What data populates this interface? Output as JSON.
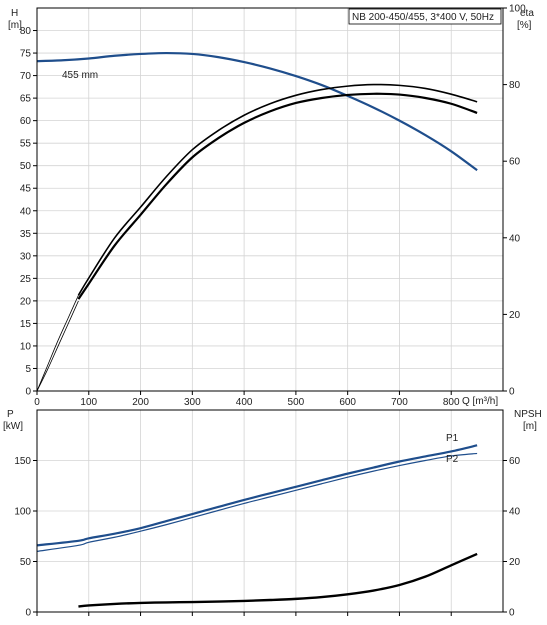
{
  "chart_data": [
    {
      "type": "line",
      "title": "NB 200-450/455, 3*400 V, 50Hz",
      "xlabel": "Q [m³/h]",
      "xlim": [
        0,
        900
      ],
      "x_ticks": [
        0,
        100,
        200,
        300,
        400,
        500,
        600,
        700,
        800
      ],
      "grid": true,
      "left_axis": {
        "label_line1": "H",
        "label_line2": "[m]",
        "ylim": [
          0,
          85
        ],
        "ticks": [
          0,
          5,
          10,
          15,
          20,
          25,
          30,
          35,
          40,
          45,
          50,
          55,
          60,
          65,
          70,
          75,
          80
        ]
      },
      "right_axis": {
        "label_line1": "eta",
        "label_line2": "[%]",
        "ylim": [
          0,
          100
        ],
        "ticks": [
          0,
          20,
          40,
          60,
          80,
          100
        ]
      },
      "series": [
        {
          "name": "455 mm",
          "axis": "left",
          "color": "#1f4e8c",
          "width": 2.2,
          "x": [
            0,
            50,
            100,
            150,
            200,
            250,
            300,
            350,
            400,
            450,
            500,
            550,
            600,
            650,
            700,
            750,
            800,
            850
          ],
          "y": [
            73.2,
            73.4,
            73.8,
            74.4,
            74.8,
            75.0,
            74.8,
            74.1,
            73.0,
            71.6,
            69.9,
            67.9,
            65.5,
            62.9,
            60.0,
            56.8,
            53.2,
            49.0
          ]
        },
        {
          "axis": "right",
          "color": "#000000",
          "width": 2.2,
          "x": [
            80,
            100,
            150,
            200,
            250,
            300,
            350,
            400,
            450,
            500,
            550,
            600,
            650,
            700,
            750,
            800,
            850
          ],
          "y": [
            24,
            28,
            38,
            46,
            54,
            61,
            66,
            70,
            73,
            75.2,
            76.5,
            77.3,
            77.6,
            77.4,
            76.5,
            75,
            72.6
          ]
        },
        {
          "axis": "right",
          "color": "#000000",
          "width": 1.6,
          "x": [
            80,
            100,
            150,
            200,
            250,
            300,
            350,
            400,
            450,
            500,
            550,
            600,
            650,
            700,
            750,
            800,
            850
          ],
          "y": [
            25,
            29.5,
            40,
            48,
            56,
            63,
            68,
            72,
            75,
            77.2,
            78.7,
            79.6,
            80,
            79.8,
            79,
            77.5,
            75.5
          ]
        },
        {
          "axis": "right",
          "color": "#000000",
          "width": 0.8,
          "x": [
            0,
            20,
            40,
            60,
            80
          ],
          "y": [
            0,
            5.5,
            11.5,
            17.5,
            23.5
          ]
        },
        {
          "axis": "right",
          "color": "#000000",
          "width": 0.8,
          "x": [
            0,
            20,
            40,
            60,
            80
          ],
          "y": [
            0,
            6.5,
            13,
            19,
            25
          ]
        }
      ]
    },
    {
      "type": "line",
      "xlim": [
        0,
        900
      ],
      "x_ticks": [
        0,
        100,
        200,
        300,
        400,
        500,
        600,
        700,
        800
      ],
      "grid": true,
      "left_axis": {
        "label_line1": "P",
        "label_line2": "[kW]",
        "ylim": [
          0,
          200
        ],
        "ticks": [
          0,
          50,
          100,
          150
        ]
      },
      "right_axis": {
        "label_line1": "NPSH",
        "label_line2": "[m]",
        "ylim": [
          0,
          80
        ],
        "ticks": [
          0,
          20,
          40,
          60
        ]
      },
      "series": [
        {
          "name": "P1",
          "axis": "left",
          "color": "#1f4e8c",
          "width": 2.2,
          "x": [
            0,
            80,
            100,
            150,
            200,
            250,
            300,
            350,
            400,
            450,
            500,
            550,
            600,
            650,
            700,
            750,
            800,
            850
          ],
          "y": [
            66,
            70.5,
            73,
            77.5,
            83,
            90,
            97,
            104,
            111,
            117.5,
            124,
            130.5,
            137,
            143,
            149,
            154,
            159,
            165
          ]
        },
        {
          "name": "P2",
          "axis": "left",
          "color": "#1f4e8c",
          "width": 1.2,
          "x": [
            0,
            80,
            100,
            150,
            200,
            250,
            300,
            350,
            400,
            450,
            500,
            550,
            600,
            650,
            700,
            750,
            800,
            850
          ],
          "y": [
            60,
            66,
            69,
            74,
            80,
            86.5,
            93.5,
            100.5,
            107.5,
            114,
            120.5,
            127,
            133.5,
            139.5,
            145,
            150,
            154.5,
            157
          ]
        },
        {
          "axis": "right",
          "color": "#000000",
          "width": 2.4,
          "x": [
            80,
            100,
            150,
            200,
            250,
            300,
            350,
            400,
            450,
            500,
            550,
            600,
            650,
            700,
            750,
            800,
            850
          ],
          "y": [
            2.2,
            2.6,
            3.2,
            3.6,
            3.8,
            3.95,
            4.15,
            4.4,
            4.75,
            5.2,
            5.9,
            7.0,
            8.5,
            10.7,
            14,
            18.5,
            23
          ]
        }
      ]
    }
  ]
}
